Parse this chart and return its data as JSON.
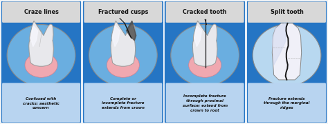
{
  "panels": [
    {
      "title": "Craze lines",
      "description": "Confused with\ncracks; aesthetic\nconcern",
      "bg_color": "#2575c4",
      "title_bg": "#d8d8d8",
      "circle_color": "#6aaee0",
      "circle_edge": "#888888",
      "tooth_type": "craze"
    },
    {
      "title": "Fractured cusps",
      "description": "Complete or\nincomplete fracture\nextends from crown",
      "bg_color": "#2575c4",
      "title_bg": "#d8d8d8",
      "circle_color": "#6aaee0",
      "circle_edge": "#888888",
      "tooth_type": "fractured"
    },
    {
      "title": "Cracked tooth",
      "description": "Incomplete fracture\nthrough proximal\nsurface; extend from\ncrown to root",
      "bg_color": "#2575c4",
      "title_bg": "#d8d8d8",
      "circle_color": "#6aaee0",
      "circle_edge": "#888888",
      "tooth_type": "cracked"
    },
    {
      "title": "Split tooth",
      "description": "Fracture extends\nthrough the marginal\nridges",
      "bg_color": "#2575c4",
      "title_bg": "#d8d8d8",
      "circle_color": "#b8d8f0",
      "circle_edge": "#888888",
      "tooth_type": "split"
    }
  ],
  "fig_bg": "#cccccc",
  "tooth_color": "#e8e8ec",
  "tooth_highlight": "#f8f8ff",
  "tooth_edge": "#999999",
  "gum_color": "#f0a8b0",
  "gum_edge": "#d08090",
  "crack_color": "#151515",
  "desc_bg": "#b8d4f0"
}
